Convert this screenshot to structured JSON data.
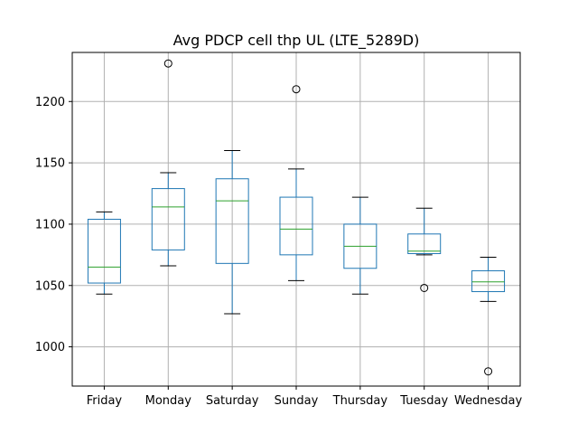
{
  "chart_data": {
    "type": "box",
    "title": "Avg PDCP cell thp UL (LTE_5289D)",
    "xlabel": "",
    "ylabel": "",
    "categories": [
      "Friday",
      "Monday",
      "Saturday",
      "Sunday",
      "Thursday",
      "Tuesday",
      "Wednesday"
    ],
    "ylim": [
      968,
      1240
    ],
    "yticks": [
      1000,
      1050,
      1100,
      1150,
      1200
    ],
    "grid": true,
    "boxes": [
      {
        "category": "Friday",
        "whisker_low": 1043,
        "q1": 1052,
        "median": 1065,
        "q3": 1104,
        "whisker_high": 1110,
        "outliers": []
      },
      {
        "category": "Monday",
        "whisker_low": 1066,
        "q1": 1079,
        "median": 1114,
        "q3": 1129,
        "whisker_high": 1142,
        "outliers": [
          1231
        ]
      },
      {
        "category": "Saturday",
        "whisker_low": 1027,
        "q1": 1068,
        "median": 1119,
        "q3": 1137,
        "whisker_high": 1160,
        "outliers": []
      },
      {
        "category": "Sunday",
        "whisker_low": 1054,
        "q1": 1075,
        "median": 1096,
        "q3": 1122,
        "whisker_high": 1145,
        "outliers": [
          1210
        ]
      },
      {
        "category": "Thursday",
        "whisker_low": 1043,
        "q1": 1064,
        "median": 1082,
        "q3": 1100,
        "whisker_high": 1122,
        "outliers": []
      },
      {
        "category": "Tuesday",
        "whisker_low": 1075,
        "q1": 1076,
        "median": 1078,
        "q3": 1092,
        "whisker_high": 1113,
        "outliers": [
          1048
        ]
      },
      {
        "category": "Wednesday",
        "whisker_low": 1037,
        "q1": 1045,
        "median": 1053,
        "q3": 1062,
        "whisker_high": 1073,
        "outliers": [
          980
        ]
      }
    ],
    "colors": {
      "box": "#1f77b4",
      "median": "#2ca02c",
      "whisker": "#1f77b4",
      "cap": "#000000",
      "grid": "#b0b0b0",
      "outlier": "#000000"
    }
  }
}
